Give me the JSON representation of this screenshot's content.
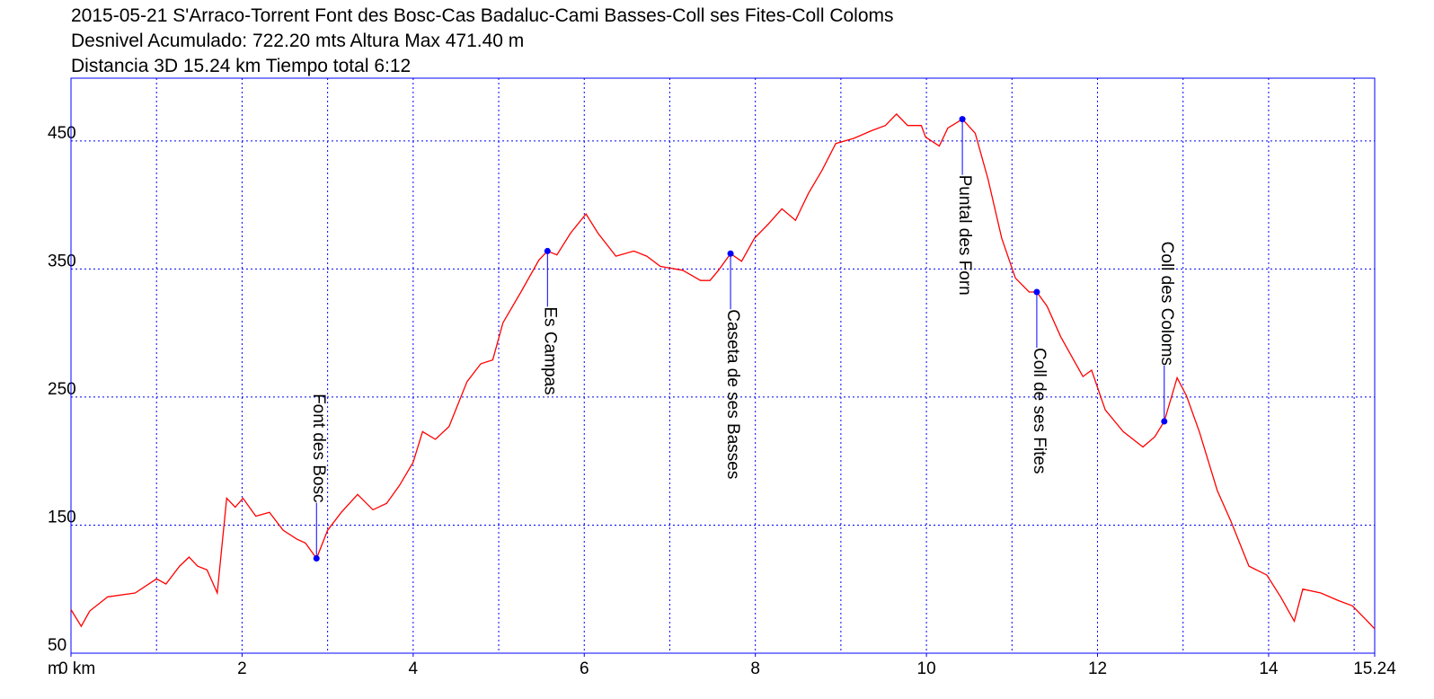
{
  "chart_data": {
    "type": "line",
    "title": "2015-05-21 S'Arraco-Torrent Font des Bosc-Cas Badaluc-Cami Basses-Coll ses Fites-Coll Coloms",
    "subtitle": "Desnivel Acumulado: 722.20 mts  Altura Max 471.40 m",
    "subtitle2": "Distancia 3D 15.24 km  Tiempo total 6:12",
    "y_label": "m",
    "xlim": [
      0,
      15.24
    ],
    "ylim": [
      50,
      499
    ],
    "xticks": [
      {
        "value": 0,
        "label": "0 km"
      },
      2,
      4,
      6,
      8,
      10,
      12,
      14,
      15.24
    ],
    "xgrid": [
      1,
      2,
      3,
      4,
      5,
      6,
      7,
      8,
      9,
      10,
      11,
      12,
      13,
      14,
      15
    ],
    "yticks": [
      50,
      150,
      250,
      350,
      450
    ],
    "grid": true,
    "frame_color": "#0000ff",
    "series": [
      {
        "color": "#ff0000",
        "x": [
          0,
          0.12,
          0.22,
          0.43,
          0.75,
          1.0,
          1.11,
          1.27,
          1.38,
          1.48,
          1.59,
          1.71,
          1.82,
          1.92,
          2.01,
          2.16,
          2.32,
          2.48,
          2.64,
          2.74,
          2.87,
          3.0,
          3.16,
          3.35,
          3.53,
          3.69,
          3.84,
          4.0,
          4.11,
          4.26,
          4.42,
          4.63,
          4.79,
          4.93,
          5.05,
          5.26,
          5.47,
          5.57,
          5.68,
          5.84,
          6.02,
          6.16,
          6.37,
          6.58,
          6.73,
          6.89,
          7.15,
          7.36,
          7.47,
          7.57,
          7.71,
          7.84,
          7.99,
          8.15,
          8.31,
          8.47,
          8.62,
          8.78,
          8.94,
          9.15,
          9.36,
          9.52,
          9.65,
          9.78,
          9.94,
          9.99,
          10.15,
          10.25,
          10.42,
          10.57,
          10.72,
          10.88,
          11.04,
          11.2,
          11.29,
          11.41,
          11.57,
          11.72,
          11.83,
          11.93,
          12.09,
          12.3,
          12.53,
          12.67,
          12.78,
          12.93,
          13.04,
          13.19,
          13.4,
          13.56,
          13.77,
          13.98,
          14.14,
          14.3,
          14.4,
          14.61,
          14.82,
          14.98,
          15.14,
          15.24
        ],
        "values": [
          84,
          71,
          83,
          94,
          97,
          108,
          104,
          118,
          125,
          118,
          115,
          97,
          171,
          164,
          171,
          157,
          160,
          146,
          139,
          136,
          124,
          146,
          160,
          174,
          162,
          167,
          181,
          199,
          223,
          217,
          227,
          262,
          276,
          279,
          308,
          332,
          357,
          364,
          361,
          378,
          393,
          378,
          360,
          364,
          360,
          352,
          349,
          341,
          341,
          349,
          362,
          356,
          374,
          385,
          397,
          388,
          409,
          427,
          448,
          452,
          458,
          462,
          471,
          462,
          462,
          453,
          446,
          460,
          467,
          456,
          420,
          374,
          343,
          332,
          332,
          321,
          297,
          279,
          266,
          271,
          240,
          223,
          211,
          219,
          231,
          265,
          251,
          223,
          177,
          153,
          118,
          111,
          94,
          75,
          100,
          97,
          91,
          87,
          76,
          69
        ]
      }
    ],
    "waypoints": [
      {
        "name": "Font des Bosc",
        "x": 2.87,
        "y": 124
      },
      {
        "name": "Es Campas",
        "x": 5.57,
        "y": 364
      },
      {
        "name": "Caseta de ses Basses",
        "x": 7.71,
        "y": 362
      },
      {
        "name": "Puntal des Forn",
        "x": 10.42,
        "y": 467
      },
      {
        "name": "Coll de ses Fites",
        "x": 11.29,
        "y": 332
      },
      {
        "name": "Coll des Coloms",
        "x": 12.78,
        "y": 231
      }
    ],
    "waypoint_color": "#0000ff"
  }
}
